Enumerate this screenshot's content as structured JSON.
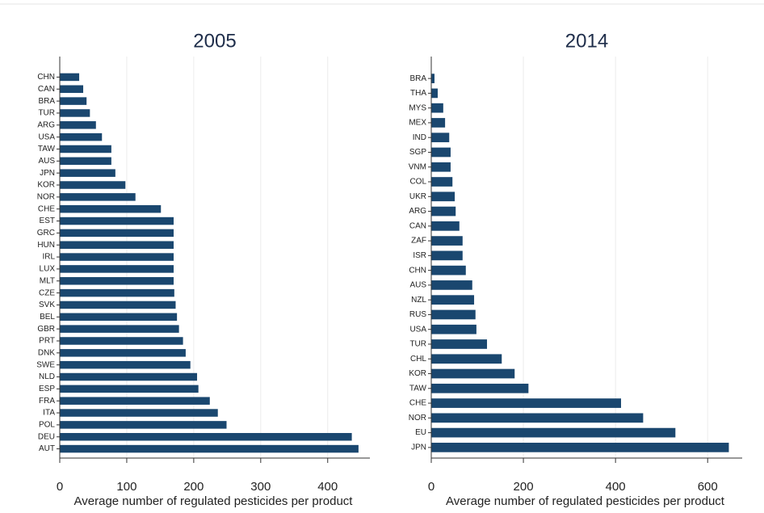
{
  "chart_data": [
    {
      "type": "bar",
      "orientation": "horizontal",
      "title": "2005",
      "categories": [
        "CHN",
        "CAN",
        "BRA",
        "TUR",
        "ARG",
        "USA",
        "TAW",
        "AUS",
        "JPN",
        "KOR",
        "NOR",
        "CHE",
        "EST",
        "GRC",
        "HUN",
        "IRL",
        "LUX",
        "MLT",
        "CZE",
        "SVK",
        "BEL",
        "GBR",
        "PRT",
        "DNK",
        "SWE",
        "NLD",
        "ESP",
        "FRA",
        "ITA",
        "POL",
        "DEU",
        "AUT"
      ],
      "values": [
        29,
        35,
        40,
        45,
        54,
        63,
        77,
        77,
        83,
        98,
        113,
        151,
        170,
        170,
        170,
        170,
        170,
        170,
        171,
        173,
        175,
        178,
        184,
        188,
        195,
        205,
        207,
        224,
        236,
        249,
        436,
        446
      ],
      "color": "#1a476f",
      "xlim": [
        0,
        463
      ],
      "xticks": [
        0,
        100,
        200,
        300,
        400
      ],
      "xlabel": "Average number of regulated pesticides per product",
      "grid": true
    },
    {
      "type": "bar",
      "orientation": "horizontal",
      "title": "2014",
      "categories": [
        "BRA",
        "THA",
        "MYS",
        "MEX",
        "IND",
        "SGP",
        "VNM",
        "COL",
        "UKR",
        "ARG",
        "CAN",
        "ZAF",
        "ISR",
        "CHN",
        "AUS",
        "NZL",
        "RUS",
        "USA",
        "TUR",
        "CHL",
        "KOR",
        "TAW",
        "CHE",
        "NOR",
        "EU",
        "JPN"
      ],
      "values": [
        7,
        14,
        26,
        30,
        39,
        42,
        42,
        46,
        51,
        53,
        61,
        68,
        68,
        75,
        89,
        93,
        96,
        98,
        121,
        153,
        181,
        211,
        412,
        460,
        530,
        646
      ],
      "color": "#1a476f",
      "xlim": [
        0,
        675
      ],
      "xticks": [
        0,
        200,
        400,
        600
      ],
      "xlabel": "Average number of regulated pesticides per product",
      "grid": true
    }
  ]
}
